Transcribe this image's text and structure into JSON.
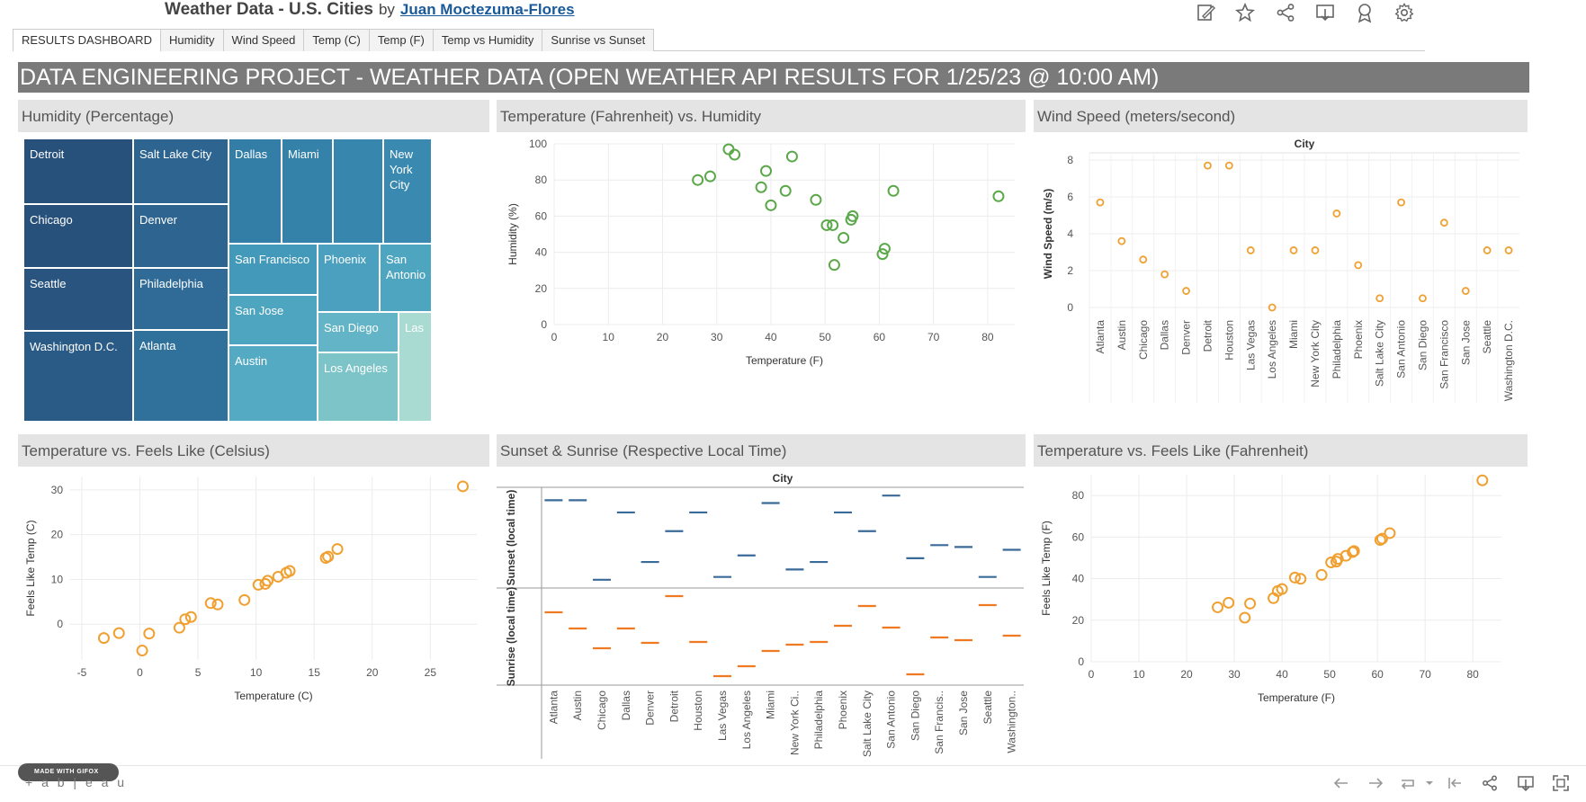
{
  "header": {
    "title": "Weather Data - U.S. Cities",
    "by": "by",
    "author": "Juan Moctezuma-Flores",
    "icons": [
      "edit-icon",
      "star-icon",
      "share-icon",
      "download-icon",
      "badge-icon",
      "gear-icon"
    ]
  },
  "tabs": [
    "RESULTS DASHBOARD",
    "Humidity",
    "Wind Speed",
    "Temp (C)",
    "Temp (F)",
    "Temp vs Humidity",
    "Sunrise vs Sunset"
  ],
  "banner": "DATA ENGINEERING PROJECT - WEATHER DATA (OPEN WEATHER API RESULTS FOR 1/25/23 @ 10:00 AM)",
  "panels": {
    "humidity": "Humidity (Percentage)",
    "temp_humidity": "Temperature (Fahrenheit) vs. Humidity",
    "wind": "Wind Speed (meters/second)",
    "feels_c": "Temperature vs. Feels Like (Celsius)",
    "sun": "Sunset & Sunrise (Respective Local Time)",
    "feels_f": "Temperature vs. Feels Like (Fahrenheit)"
  },
  "footer": {
    "gifox": "MADE WITH GIFOX",
    "brand": "+ a b | e a u"
  },
  "colors": {
    "green": "#5ba84a",
    "orange": "#f0a030",
    "blue": "#3a6a98",
    "sunrise_orange": "#ef7a22",
    "banner": "#7a7a7a"
  },
  "chart_data": [
    {
      "type": "treemap",
      "title": "Humidity (Percentage)",
      "cells": [
        {
          "label": "Detroit",
          "color": "#27507a"
        },
        {
          "label": "Chicago",
          "color": "#27507a"
        },
        {
          "label": "Seattle",
          "color": "#28547f"
        },
        {
          "label": "Washington D.C.",
          "color": "#2a5a86"
        },
        {
          "label": "Salt Lake City",
          "color": "#2d6590"
        },
        {
          "label": "Denver",
          "color": "#2d6590"
        },
        {
          "label": "Philadelphia",
          "color": "#2f6b96"
        },
        {
          "label": "Atlanta",
          "color": "#30719b"
        },
        {
          "label": "Dallas",
          "color": "#337ea6"
        },
        {
          "label": "Miami",
          "color": "#3481aa"
        },
        {
          "label": "",
          "color": "#3686ad"
        },
        {
          "label": "New\nYork\nCity",
          "color": "#3989b0"
        },
        {
          "label": "San Francisco",
          "color": "#4399b9"
        },
        {
          "label": "Phoenix",
          "color": "#4aa0be"
        },
        {
          "label": "San\nAntonio",
          "color": "#4ea5c0"
        },
        {
          "label": "San Jose",
          "color": "#4ea5c0"
        },
        {
          "label": "Austin",
          "color": "#54aac3"
        },
        {
          "label": "San Diego",
          "color": "#62b4c6"
        },
        {
          "label": "Los Angeles",
          "color": "#7cc4c8"
        },
        {
          "label": "Las",
          "color": "#a9dbd2"
        }
      ]
    },
    {
      "type": "scatter",
      "title": "Temperature (Fahrenheit) vs. Humidity",
      "xlabel": "Temperature (F)",
      "ylabel": "Humidity (%)",
      "xlim": [
        0,
        85
      ],
      "ylim": [
        0,
        100
      ],
      "xticks": [
        0,
        10,
        20,
        30,
        40,
        50,
        60,
        70,
        80
      ],
      "yticks": [
        0,
        20,
        40,
        60,
        80,
        100
      ],
      "x": [
        26.5,
        28.8,
        32.2,
        33.3,
        38.2,
        39.1,
        40,
        42.7,
        43.9,
        48.3,
        50.3,
        51.4,
        51.7,
        53.4,
        54.8,
        55.1,
        60.6,
        61,
        62.6,
        82
      ],
      "y": [
        80,
        82,
        97,
        94,
        76,
        85,
        66,
        74,
        93,
        69,
        55,
        55,
        33,
        48,
        58,
        60,
        39,
        42,
        74,
        71
      ]
    },
    {
      "type": "scatter",
      "title": "Wind Speed (meters/second)",
      "header": "City",
      "ylabel": "Wind Speed (m/s)",
      "ylim": [
        0,
        8
      ],
      "yticks": [
        0,
        2,
        4,
        6,
        8
      ],
      "categories": [
        "Atlanta",
        "Austin",
        "Chicago",
        "Dallas",
        "Denver",
        "Detroit",
        "Houston",
        "Las Vegas",
        "Los Angeles",
        "Miami",
        "New York City",
        "Philadelphia",
        "Phoenix",
        "Salt Lake City",
        "San Antonio",
        "San Diego",
        "San Francisco",
        "San Jose",
        "Seattle",
        "Washington D.C."
      ],
      "values": [
        5.7,
        3.6,
        2.6,
        1.8,
        0.9,
        7.7,
        7.7,
        3.1,
        0,
        3.1,
        3.1,
        5.1,
        2.3,
        0.5,
        5.7,
        0.5,
        4.6,
        0.9,
        3.1,
        3.1
      ]
    },
    {
      "type": "scatter",
      "title": "Temperature vs. Feels Like (Celsius)",
      "xlabel": "Temperature (C)",
      "ylabel": "Feels Like Temp (C)",
      "xlim": [
        -6,
        29
      ],
      "ylim": [
        -8,
        33
      ],
      "xticks": [
        -5,
        0,
        5,
        10,
        15,
        20,
        25
      ],
      "yticks": [
        0,
        10,
        20,
        30
      ],
      "x": [
        -3.1,
        -1.8,
        0.2,
        0.8,
        3.4,
        3.9,
        4.4,
        6.1,
        6.7,
        9,
        10.2,
        10.8,
        11,
        11.9,
        12.6,
        12.9,
        16,
        16.2,
        17,
        27.8
      ],
      "y": [
        -3.1,
        -2,
        -5.9,
        -2.1,
        -0.8,
        1.1,
        1.6,
        4.7,
        4.4,
        5.4,
        8.8,
        9,
        9.7,
        10.6,
        11.5,
        11.9,
        14.8,
        15.1,
        16.8,
        30.8
      ]
    },
    {
      "type": "gantt",
      "title": "Sunset & Sunrise (Respective Local Time)",
      "header": "City",
      "rows": [
        "Sunset (local time)",
        "Sunrise (local time)"
      ],
      "categories": [
        "Atlanta",
        "Austin",
        "Chicago",
        "Dallas",
        "Denver",
        "Detroit",
        "Houston",
        "Las Vegas",
        "Los Angeles",
        "Miami",
        "New York Ci..",
        "Philadelphia",
        "Phoenix",
        "Salt Lake City",
        "San Antonio",
        "San Diego",
        "San Francis..",
        "San Jose",
        "Seattle",
        "Washington.."
      ],
      "sunset_level": [
        0.9,
        0.9,
        0.05,
        0.77,
        0.24,
        0.57,
        0.77,
        0.08,
        0.31,
        0.87,
        0.16,
        0.24,
        0.77,
        0.57,
        0.95,
        0.28,
        0.42,
        0.4,
        0.08,
        0.37
      ],
      "sunrise_level": [
        0.77,
        0.59,
        0.37,
        0.59,
        0.43,
        0.95,
        0.44,
        0.06,
        0.17,
        0.34,
        0.41,
        0.44,
        0.62,
        0.84,
        0.6,
        0.08,
        0.49,
        0.46,
        0.85,
        0.51
      ]
    },
    {
      "type": "scatter",
      "title": "Temperature vs. Feels Like (Fahrenheit)",
      "xlabel": "Temperature (F)",
      "ylabel": "Feels Like Temp (F)",
      "xlim": [
        0,
        86
      ],
      "ylim": [
        0,
        90
      ],
      "xticks": [
        0,
        10,
        20,
        30,
        40,
        50,
        60,
        70,
        80
      ],
      "yticks": [
        0,
        20,
        40,
        60,
        80
      ],
      "x": [
        26.5,
        28.8,
        32.2,
        33.3,
        38.2,
        39.1,
        40,
        42.7,
        43.9,
        48.3,
        50.3,
        51.4,
        51.7,
        53.4,
        54.8,
        55.1,
        60.6,
        61,
        62.6,
        82
      ],
      "y": [
        26.2,
        28.4,
        21.2,
        28,
        30.6,
        34,
        35,
        40.5,
        39.9,
        41.8,
        47.8,
        48.2,
        49.5,
        51,
        52.8,
        53.3,
        58.6,
        59.2,
        61.9,
        87.3
      ]
    }
  ]
}
